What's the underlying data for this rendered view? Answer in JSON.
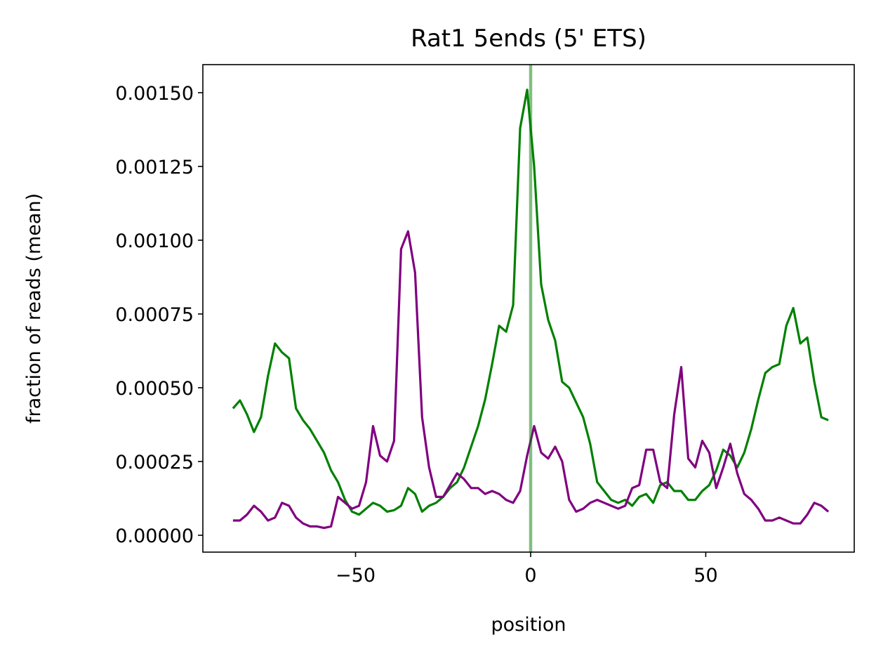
{
  "chart_data": {
    "type": "line",
    "title": "Rat1 5ends (5' ETS)",
    "xlabel": "position",
    "ylabel": "fraction of reads (mean)",
    "x": [
      -85,
      -83,
      -81,
      -79,
      -77,
      -75,
      -73,
      -71,
      -69,
      -67,
      -65,
      -63,
      -61,
      -59,
      -57,
      -55,
      -53,
      -51,
      -49,
      -47,
      -45,
      -43,
      -41,
      -39,
      -37,
      -35,
      -33,
      -31,
      -29,
      -27,
      -25,
      -23,
      -21,
      -19,
      -17,
      -15,
      -13,
      -11,
      -9,
      -7,
      -5,
      -3,
      -1,
      1,
      3,
      5,
      7,
      9,
      11,
      13,
      15,
      17,
      19,
      21,
      23,
      25,
      27,
      29,
      31,
      33,
      35,
      37,
      39,
      41,
      43,
      45,
      47,
      49,
      51,
      53,
      55,
      57,
      59,
      61,
      63,
      65,
      67,
      69,
      71,
      73,
      75,
      77,
      79,
      81,
      83,
      85
    ],
    "series": [
      {
        "color": "green",
        "values": [
          0.00043,
          0.000457,
          0.00041,
          0.00035,
          0.0004,
          0.00054,
          0.00065,
          0.00062,
          0.0006,
          0.00043,
          0.00039,
          0.00036,
          0.00032,
          0.00028,
          0.00022,
          0.00018,
          0.00012,
          8e-05,
          7e-05,
          9e-05,
          0.00011,
          0.0001,
          8e-05,
          8.5e-05,
          0.0001,
          0.00016,
          0.00014,
          8e-05,
          0.0001,
          0.00011,
          0.00013,
          0.00016,
          0.00018,
          0.00023,
          0.0003,
          0.00037,
          0.00046,
          0.00058,
          0.00071,
          0.00069,
          0.00078,
          0.00138,
          0.00151,
          0.00125,
          0.00085,
          0.00073,
          0.00066,
          0.00052,
          0.0005,
          0.00045,
          0.0004,
          0.00031,
          0.00018,
          0.00015,
          0.00012,
          0.00011,
          0.00012,
          0.0001,
          0.00013,
          0.00014,
          0.00011,
          0.00017,
          0.00018,
          0.00015,
          0.00015,
          0.00012,
          0.00012,
          0.00015,
          0.00017,
          0.00022,
          0.00029,
          0.00027,
          0.00023,
          0.00028,
          0.00036,
          0.00046,
          0.00055,
          0.00057,
          0.00058,
          0.00071,
          0.00077,
          0.00065,
          0.00067,
          0.00052,
          0.0004,
          0.00039
        ]
      },
      {
        "color": "purple",
        "values": [
          5e-05,
          5e-05,
          7e-05,
          0.0001,
          8e-05,
          5e-05,
          6e-05,
          0.00011,
          0.0001,
          6e-05,
          4e-05,
          3e-05,
          3e-05,
          2.5e-05,
          3e-05,
          0.00013,
          0.00011,
          9e-05,
          0.0001,
          0.00018,
          0.00037,
          0.00027,
          0.00025,
          0.00032,
          0.00097,
          0.00103,
          0.00089,
          0.0004,
          0.00023,
          0.00013,
          0.00013,
          0.00017,
          0.00021,
          0.00019,
          0.00016,
          0.00016,
          0.00014,
          0.00015,
          0.00014,
          0.00012,
          0.00011,
          0.00015,
          0.00027,
          0.00037,
          0.00028,
          0.00026,
          0.0003,
          0.00025,
          0.00012,
          8e-05,
          9e-05,
          0.00011,
          0.00012,
          0.00011,
          0.0001,
          9e-05,
          0.0001,
          0.00016,
          0.00017,
          0.00029,
          0.00029,
          0.00018,
          0.00016,
          0.00041,
          0.00057,
          0.00026,
          0.00023,
          0.00032,
          0.00028,
          0.00016,
          0.00023,
          0.00031,
          0.00021,
          0.00014,
          0.00012,
          9e-05,
          5e-05,
          5e-05,
          6e-05,
          5e-05,
          4e-05,
          4e-05,
          7e-05,
          0.00011,
          0.0001,
          8e-05
        ]
      }
    ],
    "vlines": [
      {
        "x": 0,
        "color": "green",
        "alpha": 0.5
      }
    ],
    "xlim": [
      -93.6,
      92.4
    ],
    "ylim": [
      -5.71e-05,
      0.001595
    ],
    "xticks": [
      {
        "value": -50,
        "label": "−50"
      },
      0,
      50
    ],
    "yticks": [
      {
        "value": 0,
        "label": "0.00000"
      },
      {
        "value": 0.00025,
        "label": "0.00025"
      },
      {
        "value": 0.0005,
        "label": "0.00050"
      },
      {
        "value": 0.00075,
        "label": "0.00075"
      },
      {
        "value": 0.001,
        "label": "0.00100"
      },
      {
        "value": 0.00125,
        "label": "0.00125"
      },
      {
        "value": 0.0015,
        "label": "0.00150"
      }
    ]
  }
}
